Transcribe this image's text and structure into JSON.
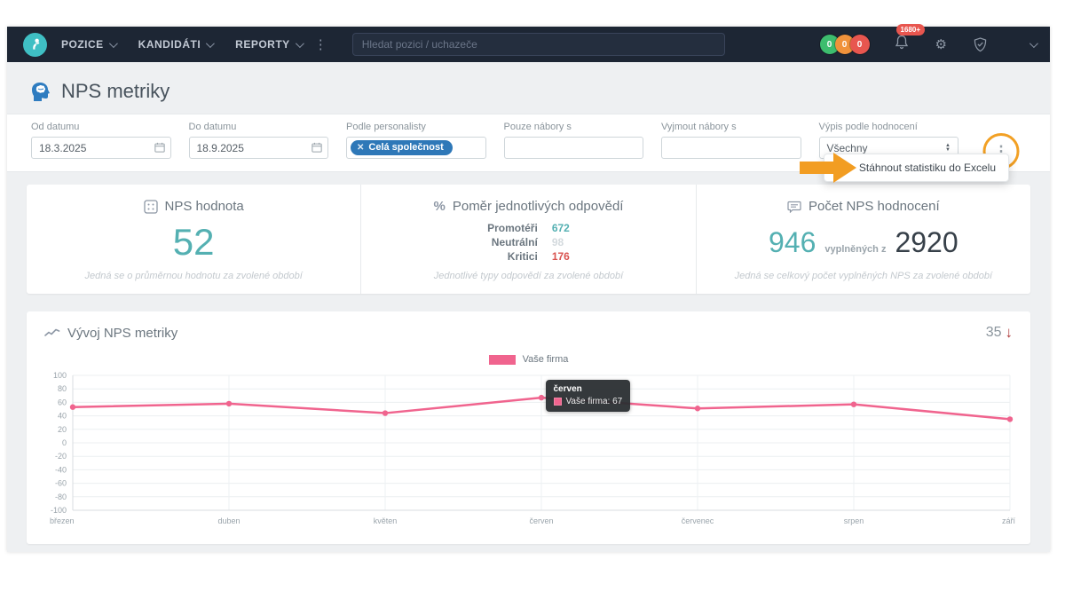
{
  "navbar": {
    "menu": [
      {
        "label": "POZICE"
      },
      {
        "label": "KANDIDÁTI"
      },
      {
        "label": "REPORTY"
      }
    ],
    "search_placeholder": "Hledat pozici / uchazeče",
    "counters": [
      {
        "value": "0",
        "color": "#3dbd6e"
      },
      {
        "value": "0",
        "color": "#f0923b"
      },
      {
        "value": "0",
        "color": "#e8564f"
      }
    ],
    "notification_badge": "1680+"
  },
  "page": {
    "title": "NPS metriky"
  },
  "filters": {
    "from_date": {
      "label": "Od datumu",
      "value": "18.3.2025"
    },
    "to_date": {
      "label": "Do datumu",
      "value": "18.9.2025"
    },
    "recruiter": {
      "label": "Podle personalisty",
      "chip": "Celá společnost"
    },
    "include": {
      "label": "Pouze nábory s",
      "value": ""
    },
    "exclude": {
      "label": "Vyjmout nábory s",
      "value": ""
    },
    "rating": {
      "label": "Výpis podle hodnocení",
      "value": "Všechny"
    }
  },
  "actions": {
    "download_excel": "Stáhnout statistiku do Excelu"
  },
  "stats": {
    "nps": {
      "title": "NPS hodnota",
      "value": "52",
      "caption": "Jedná se o průměrnou hodnotu za zvolené období"
    },
    "ratio": {
      "title": "Poměr jednotlivých odpovědí",
      "rows": [
        {
          "label": "Promotéři",
          "value": "672",
          "color": "#54b0b2"
        },
        {
          "label": "Neutrální",
          "value": "98",
          "color": "#d4dade"
        },
        {
          "label": "Kritici",
          "value": "176",
          "color": "#d9534f"
        }
      ],
      "caption": "Jednotlivé typy odpovědí za zvolené období"
    },
    "count": {
      "title": "Počet NPS hodnocení",
      "value": "946",
      "middle": "vyplněných z",
      "total": "2920",
      "caption": "Jedná se celkový počet vyplněných NPS za zvolené období"
    }
  },
  "chart": {
    "title": "Vývoj NPS metriky",
    "current_value": "35"
  },
  "chart_data": {
    "type": "line",
    "x": [
      "březen",
      "duben",
      "květen",
      "červen",
      "červenec",
      "srpen",
      "září"
    ],
    "series": [
      {
        "name": "Vaše firma",
        "values": [
          53,
          58,
          44,
          67,
          51,
          57,
          35
        ],
        "color": "#f0648e"
      }
    ],
    "ylim": [
      -100,
      100
    ],
    "ytick_step": 20,
    "grid": true,
    "legend_position": "top-center",
    "tooltip": {
      "month": "červen",
      "label": "Vaše firma",
      "value": 67,
      "text": "Vaše firma: 67"
    }
  },
  "colors": {
    "accent_teal": "#54b0b2",
    "accent_blue": "#2e78b8",
    "line_pink": "#f0648e",
    "negative_red": "#d9534f",
    "annotation_orange": "#f29d22",
    "navbar_bg": "#1d2634"
  }
}
